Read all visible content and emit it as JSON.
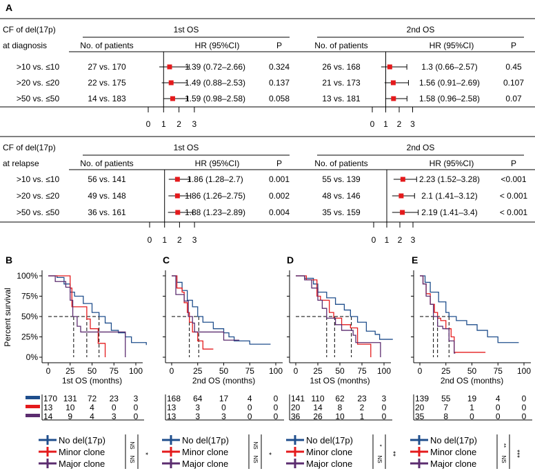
{
  "panel_A": {
    "label": "A",
    "tables": [
      {
        "row_header": [
          "CF of del(17p)",
          "at diagnosis"
        ],
        "groups": [
          {
            "title": "1st OS",
            "col_n": "No. of patients",
            "col_hr": "HR (95%CI)",
            "col_p": "P",
            "rows": [
              {
                "n": "27 vs. 170",
                "hr": 1.39,
                "lo": 0.72,
                "hi": 2.66,
                "hr_text": "1.39 (0.72–2.66)",
                "p": "0.324"
              },
              {
                "n": "22 vs. 175",
                "hr": 1.49,
                "lo": 0.88,
                "hi": 2.53,
                "hr_text": "1.49 (0.88–2.53)",
                "p": "0.137"
              },
              {
                "n": "14 vs. 183",
                "hr": 1.59,
                "lo": 0.98,
                "hi": 2.58,
                "hr_text": "1.59 (0.98–2.58)",
                "p": "0.058"
              }
            ]
          },
          {
            "title": "2nd OS",
            "col_n": "No. of patients",
            "col_hr": "HR (95%CI)",
            "col_p": "P",
            "rows": [
              {
                "n": "26 vs. 168",
                "hr": 1.3,
                "lo": 0.66,
                "hi": 2.57,
                "hr_text": "1.3 (0.66–2.57)",
                "p": "0.45"
              },
              {
                "n": "21 vs. 173",
                "hr": 1.56,
                "lo": 0.91,
                "hi": 2.69,
                "hr_text": "1.56 (0.91–2.69)",
                "p": "0.107"
              },
              {
                "n": "13 vs. 181",
                "hr": 1.58,
                "lo": 0.96,
                "hi": 2.58,
                "hr_text": "1.58 (0.96–2.58)",
                "p": "0.07"
              }
            ]
          }
        ],
        "row_labels": [
          ">10 vs. ≤10",
          ">20 vs. ≤20",
          ">50 vs. ≤50"
        ]
      },
      {
        "row_header": [
          "CF of del(17p)",
          "at relapse"
        ],
        "groups": [
          {
            "title": "1st OS",
            "col_n": "No. of patients",
            "col_hr": "HR (95%CI)",
            "col_p": "P",
            "rows": [
              {
                "n": "56 vs. 141",
                "hr": 1.86,
                "lo": 1.28,
                "hi": 2.7,
                "hr_text": "1.86 (1.28–2.7)",
                "p": "0.001"
              },
              {
                "n": "49 vs. 148",
                "hr": 1.86,
                "lo": 1.26,
                "hi": 2.75,
                "hr_text": "1.86 (1.26–2.75)",
                "p": "0.002"
              },
              {
                "n": "36 vs. 161",
                "hr": 1.88,
                "lo": 1.23,
                "hi": 2.89,
                "hr_text": "1.88 (1.23–2.89)",
                "p": "0.004"
              }
            ]
          },
          {
            "title": "2nd OS",
            "col_n": "No. of patients",
            "col_hr": "HR (95%CI)",
            "col_p": "P",
            "rows": [
              {
                "n": "55 vs. 139",
                "hr": 2.23,
                "lo": 1.52,
                "hi": 3.28,
                "hr_text": "2.23 (1.52–3.28)",
                "p": "<0.001"
              },
              {
                "n": "48 vs. 146",
                "hr": 2.1,
                "lo": 1.41,
                "hi": 3.12,
                "hr_text": "2.1 (1.41–3.12)",
                "p": "< 0.001"
              },
              {
                "n": "35 vs. 159",
                "hr": 2.19,
                "lo": 1.41,
                "hi": 3.4,
                "hr_text": "2.19 (1.41–3.4)",
                "p": "< 0.001"
              }
            ]
          }
        ],
        "row_labels": [
          ">10 vs. ≤10",
          ">20 vs. ≤20",
          ">50 vs. ≤50"
        ]
      }
    ],
    "axis_ticks": [
      "0",
      "1",
      "2",
      "3"
    ]
  },
  "colors": {
    "no_del": "#1f4e8c",
    "minor": "#e41a1c",
    "major": "#5b2c6f",
    "marker": "#e41a1c"
  },
  "chart_data": [
    {
      "type": "line",
      "panel": "B",
      "xlabel": "1st OS (months)",
      "ylabel": "Percent survival",
      "xticks": [
        0,
        25,
        50,
        75,
        100
      ],
      "yticks": [
        "0%",
        "25%",
        "50%",
        "75%",
        "100%"
      ],
      "xlim": [
        0,
        115
      ],
      "ylim": [
        0,
        100
      ],
      "series": [
        {
          "name": "No del(17p)",
          "steps": [
            [
              0,
              100
            ],
            [
              10,
              98
            ],
            [
              18,
              90
            ],
            [
              25,
              80
            ],
            [
              30,
              75
            ],
            [
              40,
              66
            ],
            [
              50,
              55
            ],
            [
              58,
              50
            ],
            [
              65,
              42
            ],
            [
              72,
              33
            ],
            [
              80,
              30
            ],
            [
              88,
              25
            ],
            [
              95,
              18
            ],
            [
              112,
              15
            ]
          ]
        },
        {
          "name": "Minor clone",
          "steps": [
            [
              0,
              100
            ],
            [
              23,
              100
            ],
            [
              25,
              85
            ],
            [
              27,
              62
            ],
            [
              40,
              62
            ],
            [
              44,
              47
            ],
            [
              48,
              35
            ],
            [
              55,
              35
            ],
            [
              57,
              17
            ],
            [
              65,
              17
            ],
            [
              65,
              0
            ]
          ]
        },
        {
          "name": "Major clone",
          "steps": [
            [
              0,
              100
            ],
            [
              8,
              93
            ],
            [
              20,
              86
            ],
            [
              25,
              70
            ],
            [
              28,
              50
            ],
            [
              33,
              38
            ],
            [
              37,
              31
            ],
            [
              88,
              31
            ],
            [
              88,
              0
            ]
          ]
        }
      ],
      "medians": [
        29,
        44,
        58
      ],
      "risk": [
        [
          "170",
          "131",
          "72",
          "23",
          "3"
        ],
        [
          "13",
          "10",
          "4",
          "0",
          "0"
        ],
        [
          "14",
          "9",
          "4",
          "3",
          "0"
        ]
      ],
      "sig_pairs": [
        "NS",
        "NS"
      ],
      "sig_overall": "*"
    },
    {
      "type": "line",
      "panel": "C",
      "xlabel": "2nd OS (months)",
      "xticks": [
        0,
        25,
        50,
        75,
        100
      ],
      "yticks": [
        "0%",
        "25%",
        "50%",
        "75%",
        "100%"
      ],
      "xlim": [
        0,
        100
      ],
      "ylim": [
        0,
        100
      ],
      "series": [
        {
          "name": "No del(17p)",
          "steps": [
            [
              0,
              100
            ],
            [
              5,
              92
            ],
            [
              10,
              82
            ],
            [
              15,
              70
            ],
            [
              20,
              62
            ],
            [
              25,
              50
            ],
            [
              30,
              43
            ],
            [
              40,
              35
            ],
            [
              50,
              30
            ],
            [
              55,
              25
            ],
            [
              60,
              20
            ],
            [
              75,
              20
            ],
            [
              75,
              16
            ],
            [
              95,
              16
            ]
          ]
        },
        {
          "name": "Minor clone",
          "steps": [
            [
              0,
              100
            ],
            [
              3,
              100
            ],
            [
              5,
              85
            ],
            [
              10,
              80
            ],
            [
              12,
              67
            ],
            [
              15,
              55
            ],
            [
              17,
              43
            ],
            [
              20,
              31
            ],
            [
              25,
              20
            ],
            [
              30,
              10
            ],
            [
              40,
              10
            ]
          ]
        },
        {
          "name": "Major clone",
          "steps": [
            [
              0,
              100
            ],
            [
              4,
              77
            ],
            [
              8,
              77
            ],
            [
              12,
              69
            ],
            [
              16,
              50
            ],
            [
              20,
              42
            ],
            [
              22,
              31
            ],
            [
              50,
              31
            ],
            [
              50,
              21
            ],
            [
              65,
              21
            ]
          ]
        }
      ],
      "medians": [
        17,
        26
      ],
      "risk": [
        [
          "168",
          "64",
          "17",
          "4",
          "0"
        ],
        [
          "13",
          "3",
          "0",
          "0",
          "0"
        ],
        [
          "13",
          "3",
          "3",
          "0",
          "0"
        ]
      ],
      "sig_pairs": [
        "NS",
        "NS"
      ],
      "sig_overall": "*"
    },
    {
      "type": "line",
      "panel": "D",
      "xlabel": "1st OS (months)",
      "xticks": [
        0,
        25,
        50,
        75,
        100
      ],
      "yticks": [
        "0%",
        "25%",
        "50%",
        "75%",
        "100%"
      ],
      "xlim": [
        0,
        115
      ],
      "ylim": [
        0,
        100
      ],
      "series": [
        {
          "name": "No del(17p)",
          "steps": [
            [
              0,
              100
            ],
            [
              10,
              97
            ],
            [
              20,
              90
            ],
            [
              25,
              80
            ],
            [
              35,
              73
            ],
            [
              45,
              65
            ],
            [
              55,
              58
            ],
            [
              62,
              50
            ],
            [
              70,
              43
            ],
            [
              80,
              32
            ],
            [
              90,
              28
            ],
            [
              95,
              22
            ],
            [
              110,
              22
            ]
          ]
        },
        {
          "name": "Minor clone",
          "steps": [
            [
              0,
              100
            ],
            [
              12,
              95
            ],
            [
              22,
              95
            ],
            [
              24,
              75
            ],
            [
              28,
              70
            ],
            [
              38,
              55
            ],
            [
              43,
              48
            ],
            [
              52,
              40
            ],
            [
              62,
              36
            ],
            [
              70,
              16
            ],
            [
              85,
              16
            ],
            [
              85,
              0
            ]
          ]
        },
        {
          "name": "Major clone",
          "steps": [
            [
              0,
              100
            ],
            [
              10,
              95
            ],
            [
              18,
              85
            ],
            [
              25,
              70
            ],
            [
              30,
              60
            ],
            [
              35,
              48
            ],
            [
              45,
              40
            ],
            [
              52,
              33
            ],
            [
              65,
              27
            ],
            [
              68,
              18
            ],
            [
              96,
              8
            ],
            [
              96,
              0
            ]
          ]
        }
      ],
      "medians": [
        35,
        44,
        63
      ],
      "risk": [
        [
          "141",
          "110",
          "62",
          "23",
          "3"
        ],
        [
          "20",
          "14",
          "8",
          "2",
          "0"
        ],
        [
          "36",
          "26",
          "10",
          "1",
          "0"
        ]
      ],
      "sig_pairs": [
        "*",
        "NS"
      ],
      "sig_overall": "**"
    },
    {
      "type": "line",
      "panel": "E",
      "xlabel": "2nd OS (months)",
      "xticks": [
        0,
        25,
        50,
        75,
        100
      ],
      "yticks": [
        "0%",
        "25%",
        "50%",
        "75%",
        "100%"
      ],
      "xlim": [
        0,
        100
      ],
      "ylim": [
        0,
        100
      ],
      "series": [
        {
          "name": "No del(17p)",
          "steps": [
            [
              0,
              100
            ],
            [
              5,
              92
            ],
            [
              10,
              80
            ],
            [
              18,
              68
            ],
            [
              25,
              55
            ],
            [
              28,
              50
            ],
            [
              35,
              45
            ],
            [
              45,
              40
            ],
            [
              55,
              33
            ],
            [
              65,
              25
            ],
            [
              75,
              25
            ],
            [
              75,
              18
            ],
            [
              95,
              18
            ]
          ]
        },
        {
          "name": "Minor clone",
          "steps": [
            [
              0,
              100
            ],
            [
              3,
              90
            ],
            [
              6,
              78
            ],
            [
              10,
              65
            ],
            [
              14,
              55
            ],
            [
              17,
              48
            ],
            [
              20,
              45
            ],
            [
              25,
              35
            ],
            [
              30,
              25
            ],
            [
              33,
              6
            ],
            [
              63,
              6
            ]
          ]
        },
        {
          "name": "Major clone",
          "steps": [
            [
              0,
              100
            ],
            [
              3,
              90
            ],
            [
              6,
              75
            ],
            [
              10,
              65
            ],
            [
              13,
              50
            ],
            [
              17,
              38
            ],
            [
              22,
              35
            ],
            [
              28,
              20
            ],
            [
              33,
              5
            ],
            [
              34,
              5
            ]
          ]
        }
      ],
      "medians": [
        13,
        17,
        28
      ],
      "risk": [
        [
          "139",
          "55",
          "19",
          "4",
          "0"
        ],
        [
          "20",
          "7",
          "1",
          "0",
          "0"
        ],
        [
          "35",
          "8",
          "0",
          "0",
          "0"
        ]
      ],
      "sig_pairs": [
        "**",
        "NS"
      ],
      "sig_overall": "***"
    }
  ]
}
